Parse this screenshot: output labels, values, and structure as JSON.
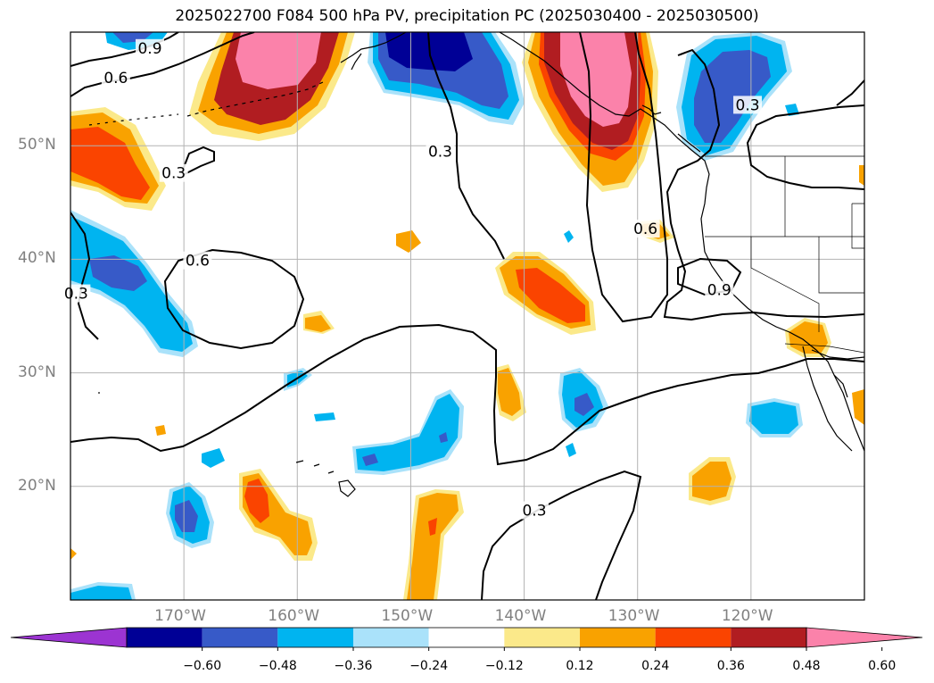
{
  "title": "2025022700 F084 500 hPa PV, precipitation PC (2025030400 - 2025030500)",
  "map": {
    "projection": "equirectangular",
    "lon_range": [
      -180,
      -110
    ],
    "lat_range": [
      10,
      60
    ],
    "lat_ticks": [
      {
        "value": 50,
        "label": "50°N"
      },
      {
        "value": 40,
        "label": "40°N"
      },
      {
        "value": 30,
        "label": "30°N"
      },
      {
        "value": 20,
        "label": "20°N"
      }
    ],
    "lon_ticks": [
      {
        "value": -170,
        "label": "170°W"
      },
      {
        "value": -160,
        "label": "160°W"
      },
      {
        "value": -150,
        "label": "150°W"
      },
      {
        "value": -140,
        "label": "140°W"
      },
      {
        "value": -130,
        "label": "130°W"
      },
      {
        "value": -120,
        "label": "120°W"
      }
    ],
    "grid": true,
    "contour_labels": [
      {
        "text": "0.9",
        "lon": -173,
        "lat": 58.6
      },
      {
        "text": "0.6",
        "lon": -176,
        "lat": 56.0
      },
      {
        "text": "0.3",
        "lon": -170.9,
        "lat": 47.6
      },
      {
        "text": "0.3",
        "lon": -147.4,
        "lat": 49.5
      },
      {
        "text": "0.6",
        "lon": -168.8,
        "lat": 39.9
      },
      {
        "text": "0.3",
        "lon": -179.5,
        "lat": 37.0
      },
      {
        "text": "0.6",
        "lon": -129.3,
        "lat": 42.7
      },
      {
        "text": "0.9",
        "lon": -122.8,
        "lat": 37.3
      },
      {
        "text": "0.3",
        "lon": -120.3,
        "lat": 53.6
      },
      {
        "text": "0.3",
        "lon": -139.1,
        "lat": 17.9
      }
    ]
  },
  "colorbar": {
    "extend": "both",
    "colors": [
      "#9c34d2",
      "#000096",
      "#375ac8",
      "#00b4f0",
      "#aae2fa",
      "#ffffff",
      "#fbe98a",
      "#f9a200",
      "#fa4400",
      "#b11d21",
      "#fb82aa"
    ],
    "ticks": [
      "−0.60",
      "−0.48",
      "−0.36",
      "−0.24",
      "−0.12",
      "0.12",
      "0.24",
      "0.36",
      "0.48",
      "0.60"
    ]
  }
}
